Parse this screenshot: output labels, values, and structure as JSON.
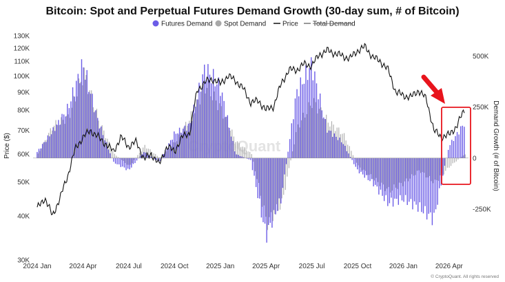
{
  "chart_data": {
    "type": "bar+line",
    "title": "Bitcoin: Spot and Perpetual Futures Demand Growth (30-day sum, # of Bitcoin)",
    "ylabel_left": "Price ($)",
    "ylabel_right": "Demand Growth (# of Bitcoin)",
    "left_axis": {
      "scale": "log",
      "min": 30000,
      "max": 130000,
      "ticks": [
        "130K",
        "120K",
        "110K",
        "100K",
        "90K",
        "80K",
        "70K",
        "60K",
        "50K",
        "40K",
        "30K"
      ],
      "tick_values": [
        130000,
        120000,
        110000,
        100000,
        90000,
        80000,
        70000,
        60000,
        50000,
        40000,
        30000
      ]
    },
    "right_axis": {
      "scale": "linear",
      "min": -500000,
      "max": 600000,
      "ticks": [
        "500K",
        "250K",
        "0",
        "-250K"
      ],
      "tick_values": [
        500000,
        250000,
        0,
        -250000
      ]
    },
    "x_ticks": [
      "2024 Jan",
      "2024 Apr",
      "2024 Jul",
      "2024 Oct",
      "2025 Jan",
      "2025 Apr",
      "2025 Jul",
      "2025 Oct",
      "2026 Jan",
      "2026 Apr"
    ],
    "x_tick_months": [
      0,
      3,
      6,
      9,
      12,
      15,
      18,
      21,
      24,
      27
    ],
    "x_range_months": [
      0,
      28
    ],
    "legend": [
      {
        "label": "Futures Demand",
        "color": "#6b5ce7",
        "marker": "dot"
      },
      {
        "label": "Spot Demand",
        "color": "#a8a8a8",
        "marker": "dot"
      },
      {
        "label": "Price",
        "color": "#111111",
        "marker": "line"
      },
      {
        "label": "Total Demand",
        "color": "#555555",
        "marker": "line",
        "strikethrough": true
      }
    ],
    "series": [
      {
        "name": "Futures Demand",
        "color": "#6b5ce7",
        "x": [
          0,
          1,
          2,
          3,
          4,
          5,
          6,
          7,
          8,
          9,
          10,
          11,
          12,
          13,
          14,
          15,
          16,
          17,
          18,
          19,
          20,
          21,
          22,
          23,
          24,
          25,
          26,
          27,
          28
        ],
        "values": [
          30000,
          130000,
          240000,
          460000,
          180000,
          -20000,
          -60000,
          30000,
          -20000,
          120000,
          160000,
          440000,
          350000,
          20000,
          -10000,
          -380000,
          -200000,
          320000,
          460000,
          140000,
          80000,
          -60000,
          -120000,
          -220000,
          -200000,
          -240000,
          -300000,
          60000,
          170000
        ]
      },
      {
        "name": "Spot Demand",
        "color": "#a8a8a8",
        "x": [
          0,
          1,
          2,
          3,
          4,
          5,
          6,
          7,
          8,
          9,
          10,
          11,
          12,
          13,
          14,
          15,
          16,
          17,
          18,
          19,
          20,
          21,
          22,
          23,
          24,
          25,
          26,
          27,
          28
        ],
        "values": [
          20000,
          160000,
          200000,
          420000,
          180000,
          20000,
          -40000,
          60000,
          0,
          80000,
          200000,
          360000,
          240000,
          80000,
          20000,
          -320000,
          -220000,
          150000,
          280000,
          180000,
          120000,
          -40000,
          -100000,
          -160000,
          -120000,
          -60000,
          -120000,
          -40000,
          20000
        ]
      },
      {
        "name": "Price",
        "x": [
          0,
          0.5,
          1,
          1.5,
          2,
          2.5,
          3,
          3.5,
          4,
          4.5,
          5,
          5.5,
          6,
          6.5,
          7,
          7.5,
          8,
          8.5,
          9,
          9.5,
          10,
          10.5,
          11,
          11.5,
          12,
          12.5,
          13,
          13.5,
          14,
          14.5,
          15,
          15.5,
          16,
          16.5,
          17,
          17.5,
          18,
          18.5,
          19,
          19.5,
          20,
          20.5,
          21,
          21.5,
          22,
          22.5,
          23,
          23.5,
          24,
          24.5,
          25,
          25.5,
          26,
          26.5,
          27,
          27.5,
          28
        ],
        "values": [
          42000,
          45000,
          40000,
          45000,
          52000,
          62000,
          67000,
          70000,
          67000,
          64000,
          61000,
          67000,
          63000,
          65000,
          58000,
          60000,
          56000,
          63000,
          61000,
          67000,
          69000,
          91000,
          96000,
          98000,
          95000,
          100000,
          97000,
          92000,
          84000,
          85000,
          80000,
          82000,
          95000,
          104000,
          104000,
          108000,
          107000,
          115000,
          118000,
          116000,
          114000,
          112000,
          118000,
          121000,
          113000,
          110000,
          104000,
          90000,
          88000,
          87000,
          91000,
          86000,
          70000,
          67000,
          68000,
          72000,
          80000
        ]
      }
    ],
    "annotations": [
      {
        "type": "arrow",
        "color": "#e8141c"
      },
      {
        "type": "highlight-box",
        "color": "#e8141c"
      }
    ],
    "watermark": "CryptoQuant",
    "copyright": "© CryptoQuant. All rights reserved"
  }
}
